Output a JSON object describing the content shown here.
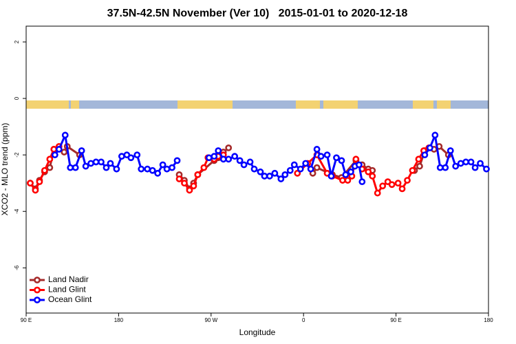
{
  "chart_data": {
    "type": "line",
    "title": "37.5N-42.5N November (Ver 10)   2015-01-01 to 2020-12-18",
    "x_label": "Longitude",
    "y_label": "XCO2 - MLO trend (ppm)",
    "xlim": [
      90,
      540
    ],
    "ylim": [
      -7.6,
      2.56
    ],
    "xticks": [
      {
        "value": 90,
        "label": "90 E"
      },
      180,
      {
        "value": 270,
        "label": "90 W"
      },
      {
        "value": 360,
        "label": "0"
      },
      {
        "value": 450,
        "label": "90 E"
      },
      {
        "value": 540,
        "label": "180"
      }
    ],
    "yticks": [
      2,
      0,
      -2,
      -4,
      -6
    ],
    "legend": "bottom-left",
    "series": [
      {
        "name": "Land Nadir",
        "color": "#a52a2a",
        "x": [
          94,
          99,
          103,
          108,
          113,
          117,
          127,
          130,
          142,
          null,
          239,
          244,
          249,
          253,
          257,
          273,
          277,
          282,
          287,
          null,
          369,
          373,
          388,
          397,
          411,
          417,
          423,
          427,
          null,
          468,
          473,
          478,
          487,
          492,
          501
        ],
        "values": [
          -3.0,
          -3.2,
          -2.9,
          -2.6,
          -2.45,
          -1.8,
          -1.9,
          -1.7,
          -2.0,
          null,
          -2.7,
          -2.9,
          -3.2,
          -3.0,
          -2.7,
          -2.2,
          -2.1,
          -1.9,
          -1.75,
          null,
          -2.65,
          -2.45,
          -2.7,
          -2.8,
          -2.2,
          -2.35,
          -2.5,
          -2.55,
          null,
          -2.55,
          -2.4,
          -1.85,
          -1.8,
          -1.7,
          -2.0
        ]
      },
      {
        "name": "Land Glint",
        "color": "#ff0000",
        "x": [
          94,
          99,
          103,
          108,
          113,
          117,
          122,
          null,
          239,
          244,
          249,
          253,
          257,
          263,
          267,
          273,
          277,
          282,
          null,
          354,
          364,
          373,
          383,
          388,
          398,
          403,
          407,
          411,
          417,
          423,
          427,
          432,
          437,
          442,
          446,
          452,
          456,
          461,
          466,
          472,
          477,
          482
        ],
        "values": [
          -3.0,
          -3.25,
          -2.95,
          -2.55,
          -2.15,
          -1.8,
          -1.7,
          null,
          -2.85,
          -3.0,
          -3.25,
          -3.1,
          -2.7,
          -2.45,
          -2.1,
          -2.15,
          -2.05,
          -2.0,
          null,
          -2.65,
          -2.3,
          -2.0,
          -2.65,
          -2.75,
          -2.9,
          -2.9,
          -2.75,
          -2.15,
          -2.5,
          -2.6,
          -2.75,
          -3.35,
          -3.1,
          -2.95,
          -3.05,
          -3.0,
          -3.2,
          -2.9,
          -2.55,
          -2.15,
          -1.85,
          -1.75
        ]
      },
      {
        "name": "Ocean Glint",
        "color": "#0000ff",
        "x": [
          118,
          122,
          128,
          133,
          138,
          144,
          148,
          153,
          158,
          163,
          168,
          172,
          178,
          183,
          188,
          192,
          198,
          202,
          208,
          213,
          218,
          223,
          227,
          232,
          237,
          null,
          268,
          273,
          277,
          282,
          287,
          293,
          298,
          302,
          308,
          312,
          318,
          322,
          327,
          332,
          338,
          342,
          347,
          351,
          357,
          362,
          367,
          373,
          377,
          383,
          387,
          392,
          397,
          401,
          406,
          410,
          414,
          417,
          null,
          478,
          483,
          488,
          493,
          498,
          503,
          508,
          513,
          518,
          523,
          527,
          532,
          538
        ],
        "values": [
          -2.0,
          -1.8,
          -1.3,
          -2.45,
          -2.45,
          -1.85,
          -2.4,
          -2.3,
          -2.25,
          -2.25,
          -2.45,
          -2.3,
          -2.5,
          -2.05,
          -2.0,
          -2.1,
          -2.0,
          -2.5,
          -2.5,
          -2.55,
          -2.65,
          -2.35,
          -2.5,
          -2.45,
          -2.2,
          null,
          -2.1,
          -2.05,
          -1.85,
          -2.15,
          -2.15,
          -2.05,
          -2.2,
          -2.35,
          -2.25,
          -2.5,
          -2.6,
          -2.75,
          -2.75,
          -2.65,
          -2.85,
          -2.7,
          -2.55,
          -2.35,
          -2.5,
          -2.3,
          -2.5,
          -1.8,
          -2.05,
          -2.0,
          -2.75,
          -2.1,
          -2.2,
          -2.7,
          -2.6,
          -2.4,
          -2.35,
          -2.95,
          null,
          -2.0,
          -1.75,
          -1.3,
          -2.45,
          -2.45,
          -1.85,
          -2.4,
          -2.3,
          -2.25,
          -2.25,
          -2.45,
          -2.3,
          -2.5
        ]
      }
    ]
  }
}
